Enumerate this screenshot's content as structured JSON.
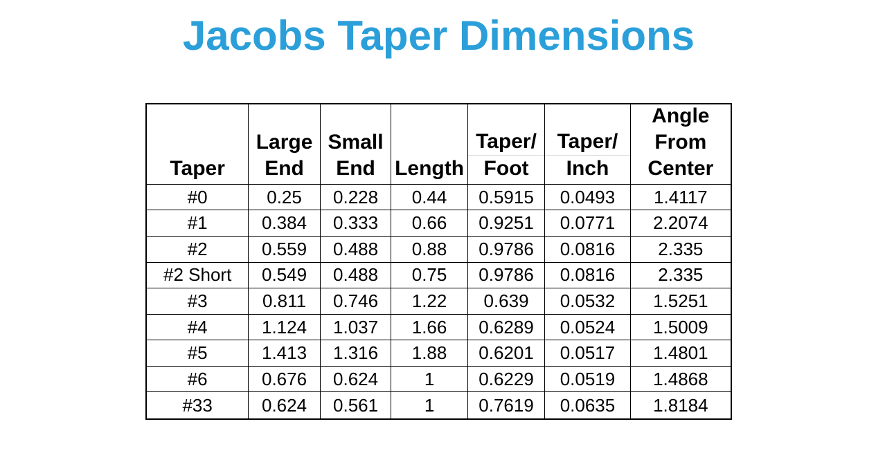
{
  "chart_data": {
    "type": "table",
    "title": "Jacobs Taper Dimensions",
    "columns": [
      {
        "id": "taper",
        "label": "Taper",
        "header_lines": [
          "Taper"
        ],
        "sub_divider": false
      },
      {
        "id": "large-end",
        "label": "Large End",
        "header_lines": [
          "Large",
          "End"
        ],
        "sub_divider": false
      },
      {
        "id": "small-end",
        "label": "Small End",
        "header_lines": [
          "Small",
          "End"
        ],
        "sub_divider": false
      },
      {
        "id": "length",
        "label": "Length",
        "header_lines": [
          "Length"
        ],
        "sub_divider": false
      },
      {
        "id": "taper-per-foot",
        "label": "Taper/Foot",
        "header_lines": [
          "Taper/",
          "Foot"
        ],
        "sub_divider": true
      },
      {
        "id": "taper-per-inch",
        "label": "Taper/Inch",
        "header_lines": [
          "Taper/",
          "Inch"
        ],
        "sub_divider": true
      },
      {
        "id": "angle-from-center",
        "label": "Angle From Center",
        "header_lines": [
          "Angle",
          "From",
          "Center"
        ],
        "sub_divider": false
      }
    ],
    "rows": [
      [
        "#0",
        "0.25",
        "0.228",
        "0.44",
        "0.5915",
        "0.0493",
        "1.4117"
      ],
      [
        "#1",
        "0.384",
        "0.333",
        "0.66",
        "0.9251",
        "0.0771",
        "2.2074"
      ],
      [
        "#2",
        "0.559",
        "0.488",
        "0.88",
        "0.9786",
        "0.0816",
        "2.335"
      ],
      [
        "#2 Short",
        "0.549",
        "0.488",
        "0.75",
        "0.9786",
        "0.0816",
        "2.335"
      ],
      [
        "#3",
        "0.811",
        "0.746",
        "1.22",
        "0.639",
        "0.0532",
        "1.5251"
      ],
      [
        "#4",
        "1.124",
        "1.037",
        "1.66",
        "0.6289",
        "0.0524",
        "1.5009"
      ],
      [
        "#5",
        "1.413",
        "1.316",
        "1.88",
        "0.6201",
        "0.0517",
        "1.4801"
      ],
      [
        "#6",
        "0.676",
        "0.624",
        "1",
        "0.6229",
        "0.0519",
        "1.4868"
      ],
      [
        "#33",
        "0.624",
        "0.561",
        "1",
        "0.7619",
        "0.0635",
        "1.8184"
      ]
    ]
  },
  "colors": {
    "title_accent": "#2B9FD9",
    "table_border": "#000000",
    "header_sub_divider": "#DADADA",
    "background": "#FFFFFF",
    "text": "#000000"
  }
}
